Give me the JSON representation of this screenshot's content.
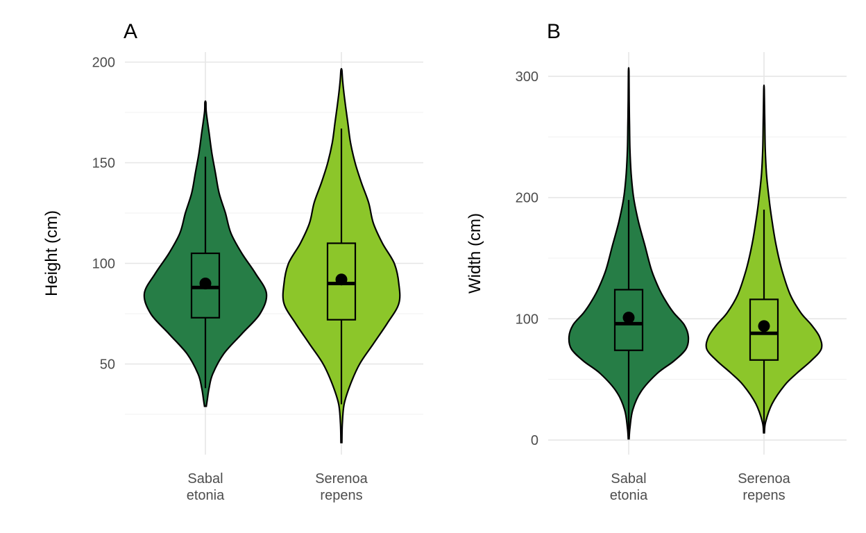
{
  "chart_data": [
    {
      "type": "violin",
      "tag": "A",
      "title": "",
      "xlabel": "",
      "ylabel": "Height (cm)",
      "ylim": [
        5,
        205
      ],
      "yticks": [
        50,
        100,
        150,
        200
      ],
      "yminor": [
        25,
        75,
        125,
        175
      ],
      "grid": true,
      "categories": [
        [
          "Sabal",
          "etonia"
        ],
        [
          "Serenoa",
          "repens"
        ]
      ],
      "groups": [
        {
          "color": "#267d46",
          "density": [
            [
              29,
              1
            ],
            [
              32,
              2
            ],
            [
              38,
              4
            ],
            [
              45,
              8
            ],
            [
              55,
              20
            ],
            [
              65,
              40
            ],
            [
              75,
              60
            ],
            [
              85,
              67
            ],
            [
              95,
              55
            ],
            [
              105,
              40
            ],
            [
              115,
              28
            ],
            [
              125,
              22
            ],
            [
              135,
              15
            ],
            [
              145,
              11
            ],
            [
              155,
              7
            ],
            [
              165,
              4
            ],
            [
              175,
              1
            ],
            [
              180,
              0.5
            ]
          ],
          "box": {
            "q1": 73,
            "median": 88,
            "q3": 105,
            "whisker_low": 38,
            "whisker_high": 153
          },
          "mean": 90
        },
        {
          "color": "#8cc62a",
          "density": [
            [
              11,
              0.5
            ],
            [
              20,
              1
            ],
            [
              30,
              3
            ],
            [
              40,
              10
            ],
            [
              50,
              20
            ],
            [
              60,
              35
            ],
            [
              70,
              50
            ],
            [
              80,
              63
            ],
            [
              90,
              63
            ],
            [
              100,
              58
            ],
            [
              110,
              45
            ],
            [
              120,
              35
            ],
            [
              130,
              30
            ],
            [
              140,
              22
            ],
            [
              150,
              15
            ],
            [
              160,
              10
            ],
            [
              170,
              7
            ],
            [
              180,
              4
            ],
            [
              190,
              1.5
            ],
            [
              196,
              0.5
            ]
          ],
          "box": {
            "q1": 72,
            "median": 90,
            "q3": 110,
            "whisker_low": 30,
            "whisker_high": 167
          },
          "mean": 92
        }
      ]
    },
    {
      "type": "violin",
      "tag": "B",
      "title": "",
      "xlabel": "",
      "ylabel": "Width (cm)",
      "ylim": [
        -12,
        320
      ],
      "yticks": [
        0,
        100,
        200,
        300
      ],
      "yminor": [
        50,
        150,
        250
      ],
      "grid": true,
      "categories": [
        [
          "Sabal",
          "etonia"
        ],
        [
          "Serenoa",
          "repens"
        ]
      ],
      "groups": [
        {
          "color": "#267d46",
          "density": [
            [
              1,
              0.5
            ],
            [
              10,
              1.5
            ],
            [
              25,
              5
            ],
            [
              40,
              15
            ],
            [
              55,
              35
            ],
            [
              65,
              55
            ],
            [
              75,
              70
            ],
            [
              85,
              73
            ],
            [
              95,
              68
            ],
            [
              105,
              55
            ],
            [
              115,
              45
            ],
            [
              125,
              37
            ],
            [
              140,
              28
            ],
            [
              160,
              20
            ],
            [
              180,
              12
            ],
            [
              200,
              6
            ],
            [
              220,
              3
            ],
            [
              240,
              1.5
            ],
            [
              260,
              1
            ],
            [
              280,
              0.6
            ],
            [
              304,
              0.3
            ]
          ],
          "box": {
            "q1": 74,
            "median": 96,
            "q3": 124,
            "whisker_low": 5,
            "whisker_high": 198
          },
          "mean": 101
        },
        {
          "color": "#8cc62a",
          "density": [
            [
              6,
              0.5
            ],
            [
              15,
              2
            ],
            [
              30,
              10
            ],
            [
              45,
              25
            ],
            [
              55,
              40
            ],
            [
              65,
              57
            ],
            [
              75,
              70
            ],
            [
              85,
              68
            ],
            [
              95,
              58
            ],
            [
              105,
              45
            ],
            [
              120,
              32
            ],
            [
              140,
              22
            ],
            [
              160,
              15
            ],
            [
              180,
              10
            ],
            [
              200,
              6
            ],
            [
              220,
              3
            ],
            [
              240,
              1.5
            ],
            [
              260,
              1
            ],
            [
              289,
              0.3
            ]
          ],
          "box": {
            "q1": 66,
            "median": 88,
            "q3": 116,
            "whisker_low": 8,
            "whisker_high": 190
          },
          "mean": 94
        }
      ]
    }
  ]
}
